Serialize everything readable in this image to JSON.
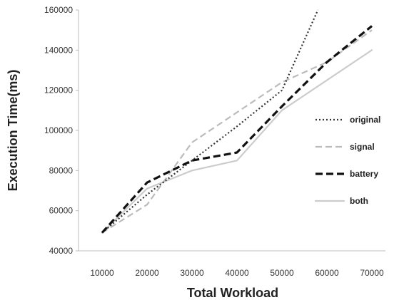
{
  "chart_data": {
    "type": "line",
    "title": "",
    "xlabel": "Total Workload",
    "ylabel": "Execution Time(ms)",
    "x": [
      10000,
      20000,
      30000,
      40000,
      50000,
      60000,
      70000
    ],
    "x_tick_labels": [
      "10000",
      "20000",
      "30000",
      "40000",
      "50000",
      "60000",
      "70000"
    ],
    "y_tick_labels": [
      "40000",
      "60000",
      "80000",
      "100000",
      "120000",
      "140000",
      "160000"
    ],
    "ylim": [
      40000,
      160000
    ],
    "grid": false,
    "legend_position": "right",
    "series": [
      {
        "name": "original",
        "style": "dotted",
        "color": "#333333",
        "points": [
          [
            10000,
            49000
          ],
          [
            20000,
            68000
          ],
          [
            30000,
            85000
          ],
          [
            40000,
            102000
          ],
          [
            50000,
            120000
          ],
          [
            58000,
            160000
          ]
        ]
      },
      {
        "name": "signal",
        "style": "dashed",
        "color": "#bbbbbb",
        "points": [
          [
            10000,
            49000
          ],
          [
            20000,
            63000
          ],
          [
            30000,
            94000
          ],
          [
            40000,
            109000
          ],
          [
            50000,
            124000
          ],
          [
            60000,
            134000
          ],
          [
            70000,
            150000
          ]
        ]
      },
      {
        "name": "battery",
        "style": "dashed-bold",
        "color": "#111111",
        "points": [
          [
            10000,
            49000
          ],
          [
            20000,
            74000
          ],
          [
            30000,
            85000
          ],
          [
            40000,
            89000
          ],
          [
            50000,
            112000
          ],
          [
            60000,
            134000
          ],
          [
            70000,
            152000
          ]
        ]
      },
      {
        "name": "both",
        "style": "solid",
        "color": "#cccccc",
        "points": [
          [
            10000,
            49000
          ],
          [
            20000,
            71000
          ],
          [
            30000,
            80000
          ],
          [
            40000,
            85000
          ],
          [
            50000,
            110000
          ],
          [
            60000,
            125000
          ],
          [
            70000,
            140000
          ]
        ]
      }
    ]
  }
}
